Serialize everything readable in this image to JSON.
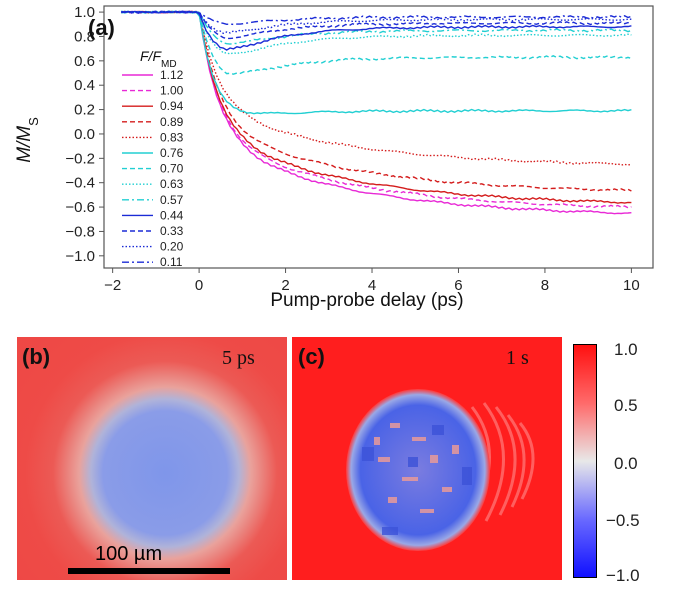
{
  "chart_data": {
    "type": "line",
    "panel_label": "(a)",
    "xlabel": "Pump-probe delay (ps)",
    "ylabel": "M/MS",
    "xlim": [
      -2.2,
      10.5
    ],
    "ylim": [
      -1.1,
      1.05
    ],
    "xticks": [
      "−2",
      "0",
      "2",
      "4",
      "6",
      "8",
      "10"
    ],
    "yticks": [
      "1.0",
      "0.8",
      "0.6",
      "0.4",
      "0.2",
      "0.0",
      "−0.2",
      "−0.4",
      "−0.6",
      "−0.8",
      "−1.0"
    ],
    "legend_title": "F/FMD",
    "legend_position": "left",
    "series": [
      {
        "name": "1.12",
        "color": "#e829d6",
        "dash": "solid",
        "final": -0.68
      },
      {
        "name": "1.00",
        "color": "#e829d6",
        "dash": "dashed",
        "final": -0.63
      },
      {
        "name": "0.94",
        "color": "#d41c1c",
        "dash": "solid",
        "final": -0.59
      },
      {
        "name": "0.89",
        "color": "#d41c1c",
        "dash": "dashed",
        "final": -0.49
      },
      {
        "name": "0.83",
        "color": "#d41c1c",
        "dash": "dotted",
        "final": -0.27
      },
      {
        "name": "0.76",
        "color": "#22cfd2",
        "dash": "solid",
        "final": 0.19
      },
      {
        "name": "0.70",
        "color": "#22cfd2",
        "dash": "dashed",
        "final": 0.63
      },
      {
        "name": "0.63",
        "color": "#22cfd2",
        "dash": "dotted",
        "final": 0.81
      },
      {
        "name": "0.57",
        "color": "#22cfd2",
        "dash": "dashdot",
        "final": 0.85
      },
      {
        "name": "0.44",
        "color": "#1b2bd6",
        "dash": "solid",
        "final": 0.88
      },
      {
        "name": "0.33",
        "color": "#1b2bd6",
        "dash": "dashed",
        "final": 0.91
      },
      {
        "name": "0.20",
        "color": "#1b2bd6",
        "dash": "dotted",
        "final": 0.94
      },
      {
        "name": "0.11",
        "color": "#1b2bd6",
        "dash": "dashdot",
        "final": 0.96
      }
    ],
    "series_minima": [
      -0.68,
      -0.63,
      -0.59,
      -0.49,
      -0.27,
      0.12,
      0.4,
      0.58,
      0.69,
      0.62,
      0.74,
      0.79,
      0.88
    ]
  },
  "images": {
    "b": {
      "label": "(b)",
      "time": "5 ps",
      "scale_label": "100 µm"
    },
    "c": {
      "label": "(c)",
      "time": "1 s"
    }
  },
  "colorbar": {
    "ticks": [
      "1.0",
      "0.5",
      "0.0",
      "−0.5",
      "−1.0"
    ],
    "levels": [
      1.0,
      0.5,
      0.0,
      -0.5,
      -1.0
    ]
  }
}
